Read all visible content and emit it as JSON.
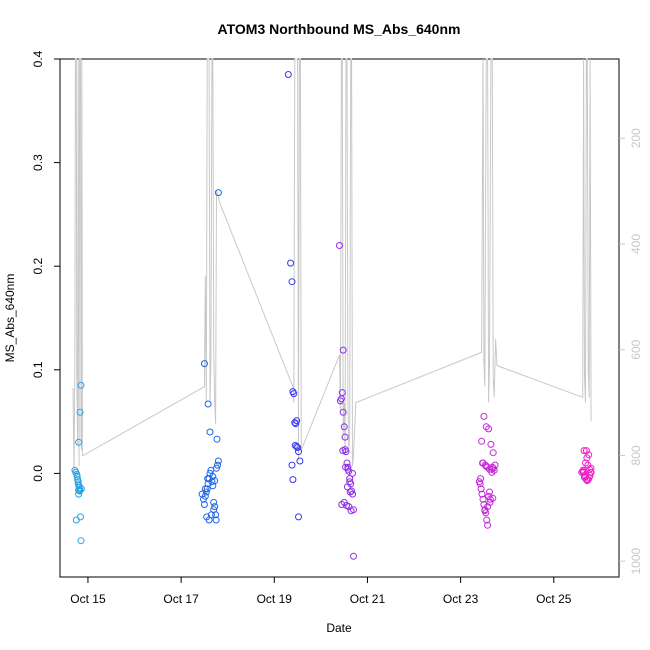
{
  "chart_data": {
    "type": "scatter",
    "title": "ATOM3 Northbound MS_Abs_640nm",
    "xlabel": "Date",
    "ylabel": "MS_Abs_640nm",
    "x_tick_labels": [
      "Oct 15",
      "Oct 17",
      "Oct 19",
      "Oct 21",
      "Oct 23",
      "Oct 25"
    ],
    "x_tick_values": [
      15,
      17,
      19,
      21,
      23,
      25
    ],
    "xlim": [
      14.4,
      26.4
    ],
    "y_tick_labels": [
      "0.0",
      "0.1",
      "0.2",
      "0.3",
      "0.4"
    ],
    "y_tick_values": [
      0,
      0.1,
      0.2,
      0.3,
      0.4
    ],
    "ylim": [
      -0.1,
      0.4
    ],
    "y2_tick_labels": [
      "200",
      "400",
      "600",
      "800",
      "1000"
    ],
    "y2_tick_values": [
      200,
      400,
      600,
      800,
      1000
    ],
    "y2lim": [
      1030,
      50
    ],
    "grid": false,
    "legend": "none",
    "point_color_scale": [
      "#29a3e0",
      "#1f66e8",
      "#3838f0",
      "#8f2ee8",
      "#c42ad8",
      "#f020c8"
    ],
    "line_color": "#c8c8c8",
    "series": [
      {
        "color": "#29a3e0",
        "x": [
          14.72,
          14.74,
          14.76,
          14.77,
          14.78,
          14.79,
          14.8,
          14.8,
          14.81,
          14.82,
          14.83,
          14.84,
          14.85,
          14.86,
          14.75,
          14.85,
          14.83,
          14.8,
          14.79,
          14.81
        ],
        "y": [
          0.003,
          0.001,
          -0.001,
          -0.003,
          -0.006,
          -0.01,
          -0.016,
          -0.02,
          -0.014,
          -0.017,
          -0.016,
          -0.042,
          -0.065,
          -0.015,
          -0.045,
          0.085,
          0.059,
          0.03,
          -0.008,
          -0.012
        ]
      },
      {
        "color": "#1f66e8",
        "x": [
          17.45,
          17.48,
          17.5,
          17.52,
          17.54,
          17.56,
          17.58,
          17.6,
          17.62,
          17.64,
          17.66,
          17.68,
          17.7,
          17.72,
          17.74,
          17.76,
          17.78,
          17.8,
          17.55,
          17.6,
          17.65,
          17.7,
          17.75,
          17.5,
          17.58,
          17.62,
          17.68,
          17.72,
          17.8,
          17.52,
          17.57,
          17.77
        ],
        "y": [
          -0.02,
          -0.025,
          -0.03,
          -0.022,
          -0.018,
          -0.015,
          -0.01,
          -0.005,
          0.0,
          0.003,
          -0.008,
          -0.012,
          -0.028,
          -0.032,
          -0.04,
          0.005,
          0.008,
          0.012,
          -0.042,
          -0.045,
          -0.04,
          -0.035,
          -0.045,
          0.106,
          0.067,
          0.04,
          -0.003,
          -0.007,
          0.271,
          -0.015,
          -0.005,
          0.033
        ]
      },
      {
        "color": "#3838f0",
        "x": [
          19.3,
          19.35,
          19.38,
          19.4,
          19.42,
          19.44,
          19.46,
          19.48,
          19.5,
          19.52,
          19.55,
          19.38,
          19.4,
          19.45,
          19.48,
          19.52
        ],
        "y": [
          0.385,
          0.203,
          0.185,
          0.079,
          0.077,
          0.049,
          0.048,
          0.026,
          0.025,
          0.021,
          0.012,
          0.008,
          -0.006,
          0.027,
          0.051,
          -0.042
        ]
      },
      {
        "color": "#8f2ee8",
        "x": [
          20.4,
          20.42,
          20.44,
          20.46,
          20.48,
          20.5,
          20.52,
          20.54,
          20.56,
          20.58,
          20.6,
          20.62,
          20.64,
          20.66,
          20.68,
          20.7,
          20.45,
          20.5,
          20.55,
          20.6,
          20.65,
          20.7,
          20.48,
          20.52,
          20.58,
          20.62,
          20.47,
          20.53,
          20.68,
          20.63,
          20.57
        ],
        "y": [
          0.22,
          0.07,
          0.072,
          0.078,
          0.059,
          0.045,
          0.035,
          0.021,
          0.01,
          0.006,
          0.002,
          -0.005,
          -0.01,
          -0.017,
          -0.02,
          -0.035,
          -0.03,
          -0.028,
          -0.031,
          -0.032,
          -0.036,
          -0.08,
          0.119,
          0.023,
          0.004,
          -0.008,
          0.022,
          0.006,
          0.0,
          -0.018,
          -0.013
        ]
      },
      {
        "color": "#c42ad8",
        "x": [
          23.4,
          23.42,
          23.44,
          23.46,
          23.48,
          23.5,
          23.52,
          23.54,
          23.56,
          23.58,
          23.6,
          23.62,
          23.64,
          23.66,
          23.68,
          23.7,
          23.72,
          23.74,
          23.45,
          23.5,
          23.55,
          23.6,
          23.65,
          23.7,
          23.48,
          23.53,
          23.57,
          23.62,
          23.67,
          23.43,
          23.52,
          23.58,
          23.63,
          23.69,
          23.47,
          23.55
        ],
        "y": [
          -0.008,
          -0.01,
          -0.015,
          -0.02,
          -0.025,
          -0.03,
          -0.035,
          -0.038,
          -0.045,
          -0.05,
          -0.022,
          -0.018,
          -0.025,
          0.004,
          0.006,
          0.005,
          0.003,
          0.008,
          0.031,
          0.055,
          0.045,
          0.043,
          0.028,
          0.02,
          0.01,
          0.008,
          0.006,
          0.004,
          0.001,
          -0.005,
          -0.036,
          -0.032,
          -0.028,
          -0.024,
          0.01,
          0.007
        ]
      },
      {
        "color": "#f020c8",
        "x": [
          25.6,
          25.62,
          25.64,
          25.66,
          25.68,
          25.7,
          25.72,
          25.74,
          25.76,
          25.78,
          25.8,
          25.65,
          25.7,
          25.75,
          25.8,
          25.68,
          25.73,
          25.77,
          25.63,
          25.71,
          25.79,
          25.66
        ],
        "y": [
          0.001,
          0.002,
          0.001,
          -0.002,
          -0.003,
          -0.006,
          -0.007,
          -0.006,
          -0.004,
          -0.002,
          0.001,
          0.022,
          0.022,
          0.018,
          0.005,
          0.01,
          0.008,
          0.004,
          0.003,
          0.015,
          0.001,
          -0.004
        ]
      }
    ],
    "line_series": {
      "color": "#c8c8c8",
      "x": [
        14.68,
        14.7,
        14.72,
        14.73,
        14.75,
        14.76,
        14.78,
        14.79,
        14.81,
        14.82,
        14.84,
        14.85,
        14.86,
        14.87,
        14.88,
        14.9,
        17.5,
        17.52,
        17.54,
        17.56,
        17.58,
        17.6,
        17.62,
        17.64,
        17.66,
        17.68,
        17.7,
        17.72,
        17.74,
        17.76,
        17.8,
        17.82,
        19.4,
        19.42,
        19.44,
        19.46,
        19.48,
        19.5,
        19.52,
        19.54,
        19.56,
        19.58,
        20.4,
        20.42,
        20.44,
        20.46,
        20.48,
        20.5,
        20.52,
        20.54,
        20.56,
        20.58,
        20.6,
        20.62,
        20.64,
        20.66,
        20.68,
        20.7,
        20.75,
        23.45,
        23.48,
        23.5,
        23.52,
        23.55,
        23.58,
        23.6,
        23.62,
        23.65,
        23.68,
        23.7,
        23.72,
        23.75,
        23.78,
        25.62,
        25.64,
        25.66,
        25.68,
        25.7,
        25.72,
        25.74,
        25.76,
        25.78,
        25.8
      ],
      "y": [
        673,
        835,
        610,
        50,
        50,
        650,
        780,
        50,
        820,
        50,
        50,
        760,
        790,
        50,
        800,
        800,
        670,
        460,
        700,
        50,
        50,
        50,
        700,
        620,
        50,
        50,
        600,
        700,
        740,
        300,
        310,
        320,
        670,
        700,
        50,
        50,
        50,
        50,
        810,
        50,
        50,
        790,
        610,
        720,
        50,
        50,
        760,
        700,
        800,
        50,
        50,
        700,
        790,
        760,
        50,
        50,
        820,
        800,
        700,
        605,
        50,
        620,
        670,
        50,
        50,
        700,
        630,
        50,
        50,
        650,
        690,
        580,
        630,
        690,
        50,
        650,
        700,
        50,
        50,
        640,
        690,
        50,
        735
      ]
    }
  }
}
